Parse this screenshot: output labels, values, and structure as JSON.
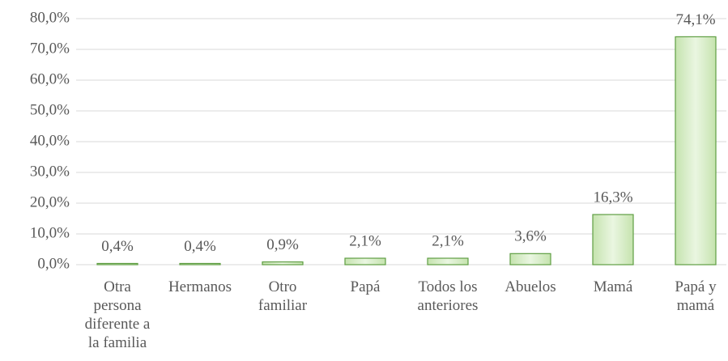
{
  "chart_data": {
    "type": "bar",
    "categories": [
      "Otra persona diferente a la familia",
      "Hermanos",
      "Otro familiar",
      "Papá",
      "Todos los anteriores",
      "Abuelos",
      "Mamá",
      "Papá y mamá"
    ],
    "values": [
      0.4,
      0.4,
      0.9,
      2.1,
      2.1,
      3.6,
      16.3,
      74.1
    ],
    "value_labels": [
      "0,4%",
      "0,4%",
      "0,9%",
      "2,1%",
      "2,1%",
      "3,6%",
      "16,3%",
      "74,1%"
    ],
    "color": "#d6edc6",
    "ylim": [
      0,
      80
    ],
    "yticks": [
      {
        "value": 0,
        "label": "0,0%"
      },
      {
        "value": 10,
        "label": "10,0%"
      },
      {
        "value": 20,
        "label": "20,0%"
      },
      {
        "value": 30,
        "label": "30,0%"
      },
      {
        "value": 40,
        "label": "40,0%"
      },
      {
        "value": 50,
        "label": "50,0%"
      },
      {
        "value": 60,
        "label": "60,0%"
      },
      {
        "value": 70,
        "label": "70,0%"
      },
      {
        "value": 80,
        "label": "80,0%"
      }
    ],
    "grid": true
  }
}
